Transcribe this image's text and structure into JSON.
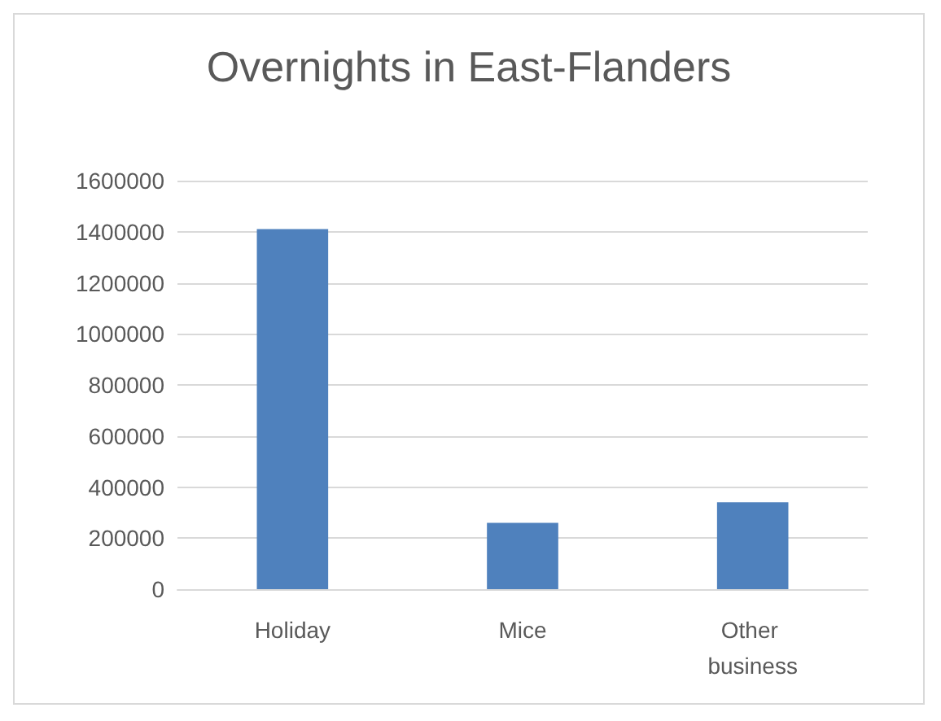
{
  "chart_data": {
    "type": "bar",
    "title": "Overnights in East-Flanders",
    "categories": [
      "Holiday",
      "Mice",
      "Other business"
    ],
    "values": [
      1410000,
      260000,
      340000
    ],
    "color": "#4f81bd",
    "ylim": [
      0,
      1600000
    ],
    "yticks": [
      0,
      200000,
      400000,
      600000,
      800000,
      1000000,
      1200000,
      1400000,
      1600000
    ],
    "grid": "y"
  }
}
